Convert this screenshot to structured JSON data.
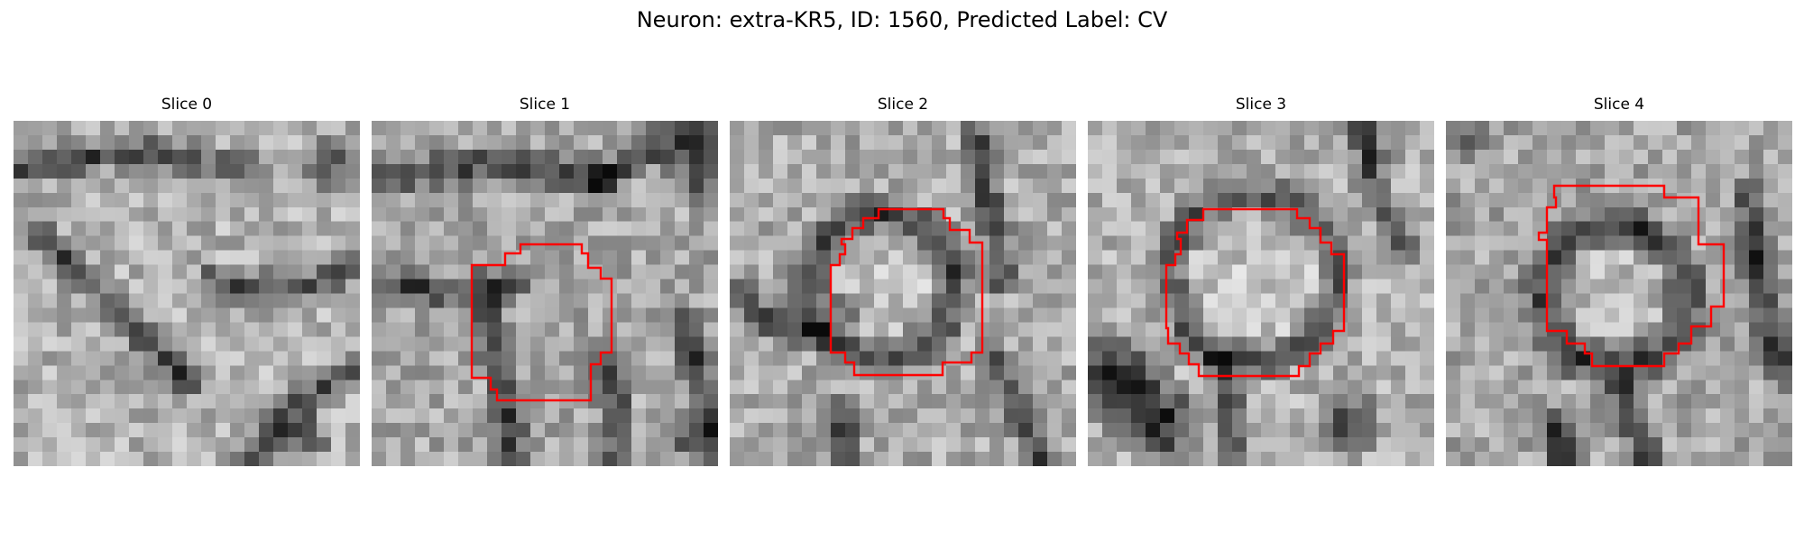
{
  "figure": {
    "title": "Neuron: extra-KR5, ID: 1560, Predicted Label: CV"
  },
  "colors": {
    "contour": "#ff0000",
    "background": "#ffffff"
  },
  "slices": [
    {
      "title": "Slice 0",
      "has_contour": false
    },
    {
      "title": "Slice 1",
      "has_contour": true
    },
    {
      "title": "Slice 2",
      "has_contour": true
    },
    {
      "title": "Slice 3",
      "has_contour": true
    },
    {
      "title": "Slice 4",
      "has_contour": true
    }
  ]
}
